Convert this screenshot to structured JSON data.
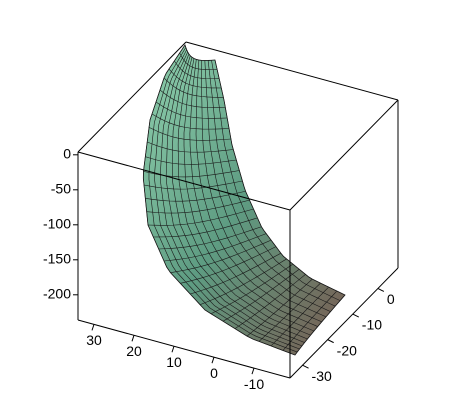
{
  "chart_data": {
    "type": "surface3d",
    "xlim": [
      34,
      -19
    ],
    "xticks": [
      30,
      20,
      10,
      0,
      -10
    ],
    "ylim": [
      -35,
      8
    ],
    "yticks": [
      -30,
      -20,
      -10,
      0
    ],
    "zlim": [
      -236,
      4
    ],
    "zticks": [
      0,
      -50,
      -100,
      -150,
      -200
    ]
  }
}
